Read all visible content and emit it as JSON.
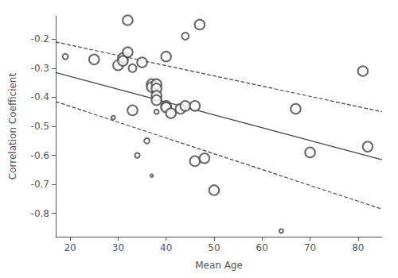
{
  "chart_data": {
    "type": "scatter",
    "xlabel": "Mean Age",
    "ylabel": "Correlation Coefficient",
    "x": [
      19,
      25,
      29,
      30,
      31,
      31,
      32,
      32,
      33,
      33,
      34,
      35,
      36,
      37,
      37,
      37,
      38,
      38,
      38,
      38,
      38,
      38,
      40,
      40,
      40,
      41,
      43,
      44,
      44,
      46,
      46,
      47,
      48,
      50,
      64,
      67,
      70,
      81,
      82
    ],
    "values": [
      -0.26,
      -0.27,
      -0.47,
      -0.29,
      -0.265,
      -0.275,
      -0.135,
      -0.245,
      -0.3,
      -0.445,
      -0.6,
      -0.28,
      -0.55,
      -0.355,
      -0.365,
      -0.67,
      -0.36,
      -0.355,
      -0.37,
      -0.395,
      -0.41,
      -0.45,
      -0.26,
      -0.43,
      -0.435,
      -0.455,
      -0.44,
      -0.19,
      -0.43,
      -0.43,
      -0.62,
      -0.15,
      -0.61,
      -0.72,
      -0.86,
      -0.44,
      -0.59,
      -0.31,
      -0.57
    ],
    "se": [
      0.055,
      0.03,
      0.08,
      0.03,
      0.03,
      0.03,
      0.03,
      0.03,
      0.038,
      0.03,
      0.06,
      0.03,
      0.055,
      0.03,
      0.03,
      0.11,
      0.08,
      0.03,
      0.03,
      0.03,
      0.03,
      0.065,
      0.03,
      0.03,
      0.03,
      0.03,
      0.03,
      0.042,
      0.03,
      0.03,
      0.03,
      0.03,
      0.03,
      0.03,
      0.075,
      0.03,
      0.03,
      0.03,
      0.03
    ],
    "color": "#444444",
    "marker": "open circle",
    "lines": [
      {
        "type": "line",
        "x": [
          17,
          85
        ],
        "values": [
          -0.315,
          -0.615
        ],
        "line_style": "solid",
        "color": "#444444"
      },
      {
        "type": "line",
        "x": [
          17,
          85
        ],
        "values": [
          -0.21,
          -0.45
        ],
        "line_style": "dashed",
        "color": "#444444"
      },
      {
        "type": "line",
        "x": [
          17,
          85
        ],
        "values": [
          -0.415,
          -0.785
        ],
        "line_style": "dashed",
        "color": "#444444"
      }
    ],
    "xlim": [
      17,
      85
    ],
    "ylim": [
      -0.88,
      -0.12
    ],
    "xticks": [
      20,
      30,
      40,
      50,
      60,
      70,
      80
    ],
    "yticks": [
      -0.8,
      -0.7,
      -0.6,
      -0.5,
      -0.4,
      -0.3,
      -0.2
    ],
    "grid": false
  }
}
